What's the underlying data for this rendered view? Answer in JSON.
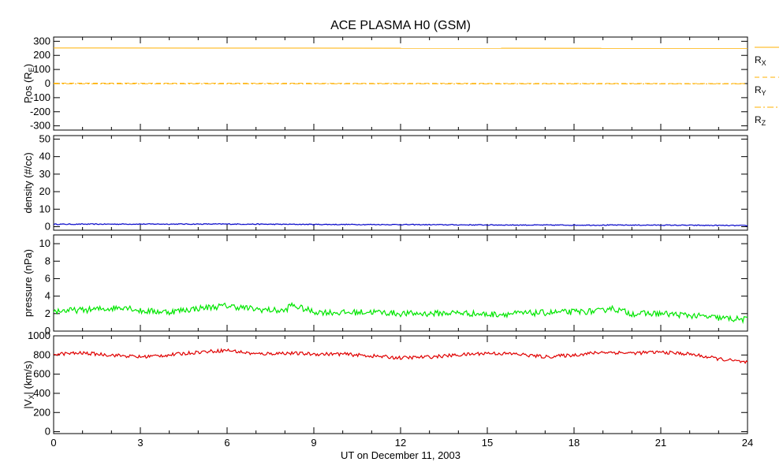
{
  "chart_data": {
    "type": "line",
    "title": "ACE PLASMA H0 (GSM)",
    "xlabel": "UT on December 11, 2003",
    "x_range": [
      0,
      24
    ],
    "x_ticks": [
      "0",
      "3",
      "6",
      "9",
      "12",
      "15",
      "18",
      "21",
      "24"
    ],
    "grid": false,
    "colors": {
      "axes": "#000000",
      "position": "#ffb000",
      "density": "#0000c8",
      "pressure": "#00e600",
      "velocity": "#e00000"
    },
    "panels": [
      {
        "ylabel": "Pos (R",
        "ylabel_sub": "E",
        "ylabel_tail": ")",
        "ylim": [
          -330,
          330
        ],
        "y_ticks": [
          -300,
          -200,
          -100,
          0,
          100,
          200,
          300
        ],
        "y_tick_labels": [
          "-300",
          "-200",
          "-100",
          "0",
          "100",
          "200",
          "300"
        ],
        "series": [
          {
            "name": "R",
            "sub": "X",
            "style": "solid",
            "x": [
              0,
              24
            ],
            "values": [
              252,
              250
            ]
          },
          {
            "name": "R",
            "sub": "Y",
            "style": "dashed",
            "x": [
              0,
              24
            ],
            "values": [
              3,
              0
            ]
          },
          {
            "name": "R",
            "sub": "Z",
            "style": "dashdot",
            "x": [
              0,
              24
            ],
            "values": [
              -1,
              -2
            ]
          }
        ]
      },
      {
        "ylabel": "density (#/cc)",
        "ylim": [
          -2,
          52
        ],
        "y_ticks": [
          0,
          10,
          20,
          30,
          40,
          50
        ],
        "y_tick_labels": [
          "0",
          "10",
          "20",
          "30",
          "40",
          "50"
        ],
        "series": [
          {
            "x": [
              0,
              3,
              6,
              9,
              12,
              15,
              18,
              21,
              24
            ],
            "values": [
              1.4,
              1.5,
              1.5,
              1.3,
              1.2,
              1.0,
              0.9,
              0.9,
              0.6
            ],
            "noise": 0.25
          }
        ]
      },
      {
        "ylabel": "pressure (nPa)",
        "ylim": [
          0,
          11
        ],
        "y_ticks": [
          0,
          2,
          4,
          6,
          8,
          10
        ],
        "y_tick_labels": [
          "0",
          "2",
          "4",
          "6",
          "8",
          "10"
        ],
        "series": [
          {
            "x": [
              0,
              1,
              2,
              2.5,
              3,
              4,
              5,
              6,
              7,
              8,
              8.2,
              9,
              10,
              11,
              12,
              13,
              14,
              15,
              16,
              17,
              18,
              19,
              19.2,
              20,
              21,
              22,
              23,
              24
            ],
            "values": [
              2.3,
              2.4,
              2.6,
              2.8,
              2.3,
              2.2,
              2.6,
              2.9,
              2.5,
              2.3,
              3.0,
              2.2,
              2.1,
              2.2,
              2.0,
              2.0,
              2.1,
              1.9,
              2.0,
              2.1,
              2.2,
              2.3,
              2.7,
              2.0,
              2.0,
              1.8,
              1.5,
              1.3
            ],
            "noise": 0.35
          }
        ]
      },
      {
        "ylabel": "|V",
        "ylabel_sub": "X",
        "ylabel_tail": "| (km/s)",
        "ylim": [
          -20,
          1000
        ],
        "y_ticks": [
          0,
          200,
          400,
          600,
          800,
          1000
        ],
        "y_tick_labels": [
          "0",
          "200",
          "400",
          "600",
          "800",
          "1000"
        ],
        "series": [
          {
            "x": [
              0,
              1,
              2,
              3,
              4,
              5,
              6,
              7,
              8,
              9,
              10,
              11,
              12,
              13,
              14,
              15,
              16,
              17,
              18,
              19,
              20,
              21,
              22,
              23,
              24
            ],
            "values": [
              810,
              820,
              800,
              780,
              800,
              830,
              850,
              810,
              820,
              810,
              810,
              790,
              770,
              780,
              800,
              820,
              810,
              780,
              800,
              830,
              820,
              830,
              810,
              760,
              720
            ],
            "noise": 18
          }
        ]
      }
    ]
  }
}
